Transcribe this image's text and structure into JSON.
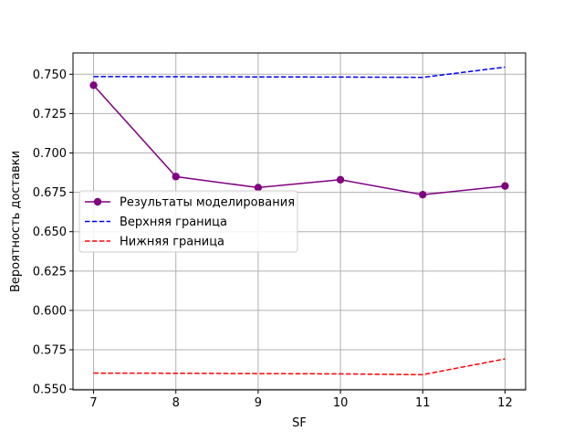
{
  "chart_data": {
    "type": "line",
    "title": "",
    "xlabel": "SF",
    "ylabel": "Вероятность доставки",
    "x": [
      7,
      8,
      9,
      10,
      11,
      12
    ],
    "xlim": [
      6.75,
      12.25
    ],
    "ylim": [
      0.5495,
      0.7635
    ],
    "xticks": [
      7,
      8,
      9,
      10,
      11,
      12
    ],
    "xtick_labels": [
      "7",
      "8",
      "9",
      "10",
      "11",
      "12"
    ],
    "yticks": [
      0.55,
      0.575,
      0.6,
      0.625,
      0.65,
      0.675,
      0.7,
      0.725,
      0.75
    ],
    "ytick_labels": [
      "0.550",
      "0.575",
      "0.600",
      "0.625",
      "0.650",
      "0.675",
      "0.700",
      "0.725",
      "0.750"
    ],
    "grid": true,
    "legend_position": "center-left",
    "series": [
      {
        "name": "Результаты моделирования",
        "values": [
          0.743,
          0.685,
          0.678,
          0.683,
          0.6735,
          0.679
        ],
        "color": "#800080",
        "style": "solid",
        "marker": "circle"
      },
      {
        "name": "Верхняя граница",
        "values": [
          0.7485,
          0.7484,
          0.7483,
          0.7482,
          0.748,
          0.7545
        ],
        "color": "#0000ff",
        "style": "dashed",
        "marker": "none"
      },
      {
        "name": "Нижняя граница",
        "values": [
          0.5602,
          0.5601,
          0.5599,
          0.5597,
          0.5592,
          0.5692
        ],
        "color": "#ff0000",
        "style": "dashed",
        "marker": "none"
      }
    ]
  }
}
